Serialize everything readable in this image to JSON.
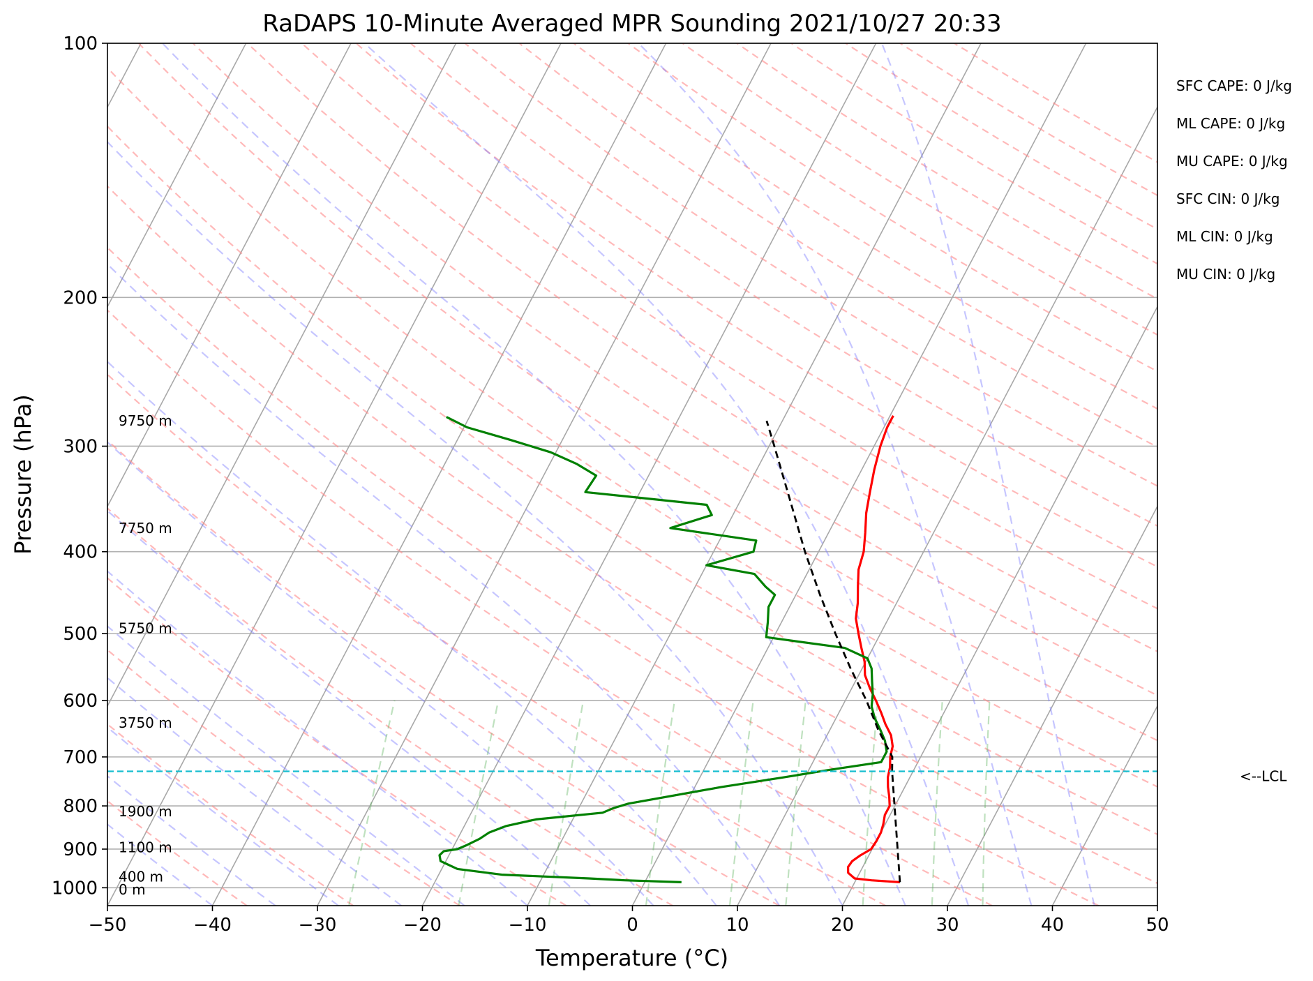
{
  "chart_data": {
    "type": "line",
    "title": "RaDAPS 10-Minute Averaged MPR Sounding 2021/10/27 20:33",
    "xlabel": "Temperature (°C)",
    "ylabel": "Pressure (hPa)",
    "xlim": [
      -50,
      50
    ],
    "ylim": [
      1050,
      100
    ],
    "y_scale": "log",
    "grid": true,
    "x_ticks": [
      "−50",
      "−40",
      "−30",
      "−20",
      "−10",
      "0",
      "10",
      "20",
      "30",
      "40",
      "50"
    ],
    "x_tick_values": [
      -50,
      -40,
      -30,
      -20,
      -10,
      0,
      10,
      20,
      30,
      40,
      50
    ],
    "y_ticks": [
      "100",
      "200",
      "300",
      "400",
      "500",
      "600",
      "700",
      "800",
      "900",
      "1000"
    ],
    "y_tick_values": [
      100,
      200,
      300,
      400,
      500,
      600,
      700,
      800,
      900,
      1000
    ],
    "height_labels": [
      {
        "text": "9750 m",
        "p": 280
      },
      {
        "text": "7750 m",
        "p": 375
      },
      {
        "text": "5750 m",
        "p": 493
      },
      {
        "text": "3750 m",
        "p": 638
      },
      {
        "text": "1900 m",
        "p": 812
      },
      {
        "text": "1100 m",
        "p": 896
      },
      {
        "text": "400 m",
        "p": 970
      },
      {
        "text": "0 m",
        "p": 1005
      }
    ],
    "stats": [
      "SFC CAPE: 0 J/kg",
      "ML CAPE: 0 J/kg",
      "MU CAPE: 0 J/kg",
      "SFC CIN: 0 J/kg",
      "ML CIN: 0 J/kg",
      "MU CIN: 0 J/kg"
    ],
    "lcl": {
      "label": "<--LCL",
      "p": 728,
      "color": "#17becf"
    },
    "series": [
      {
        "color": "#ff0000",
        "points": [
          [
            985,
            24.3
          ],
          [
            980,
            21.5
          ],
          [
            975,
            19.8
          ],
          [
            960,
            18.9
          ],
          [
            945,
            18.6
          ],
          [
            930,
            18.7
          ],
          [
            915,
            19.2
          ],
          [
            900,
            19.9
          ],
          [
            880,
            20.0
          ],
          [
            860,
            20.0
          ],
          [
            840,
            19.8
          ],
          [
            820,
            19.5
          ],
          [
            800,
            19.5
          ],
          [
            780,
            19.0
          ],
          [
            760,
            18.4
          ],
          [
            740,
            17.9
          ],
          [
            720,
            17.6
          ],
          [
            700,
            17.1
          ],
          [
            680,
            16.8
          ],
          [
            660,
            16.1
          ],
          [
            640,
            15.0
          ],
          [
            620,
            14.0
          ],
          [
            600,
            12.9
          ],
          [
            580,
            11.7
          ],
          [
            560,
            10.6
          ],
          [
            540,
            9.9
          ],
          [
            520,
            8.9
          ],
          [
            500,
            7.9
          ],
          [
            480,
            6.9
          ],
          [
            460,
            6.3
          ],
          [
            440,
            5.5
          ],
          [
            420,
            4.7
          ],
          [
            400,
            4.3
          ],
          [
            380,
            3.5
          ],
          [
            360,
            2.6
          ],
          [
            340,
            1.9
          ],
          [
            320,
            1.2
          ],
          [
            300,
            0.6
          ],
          [
            285,
            0.3
          ],
          [
            276,
            0.3
          ]
        ]
      },
      {
        "color": "#008000",
        "points": [
          [
            985,
            3.5
          ],
          [
            980,
            -2.0
          ],
          [
            975,
            -5.5
          ],
          [
            965,
            -14.0
          ],
          [
            950,
            -18.5
          ],
          [
            930,
            -20.5
          ],
          [
            915,
            -20.9
          ],
          [
            905,
            -20.7
          ],
          [
            900,
            -19.5
          ],
          [
            890,
            -18.8
          ],
          [
            875,
            -17.9
          ],
          [
            860,
            -17.3
          ],
          [
            845,
            -16.0
          ],
          [
            830,
            -13.5
          ],
          [
            815,
            -7.5
          ],
          [
            805,
            -6.7
          ],
          [
            795,
            -5.5
          ],
          [
            760,
            2.5
          ],
          [
            740,
            8.0
          ],
          [
            725,
            12.0
          ],
          [
            710,
            16.5
          ],
          [
            690,
            16.5
          ],
          [
            670,
            15.8
          ],
          [
            650,
            14.8
          ],
          [
            630,
            13.7
          ],
          [
            610,
            12.8
          ],
          [
            590,
            12.3
          ],
          [
            570,
            11.6
          ],
          [
            550,
            10.9
          ],
          [
            535,
            10.0
          ],
          [
            520,
            7.3
          ],
          [
            505,
            -0.7
          ],
          [
            485,
            -1.3
          ],
          [
            465,
            -2.0
          ],
          [
            450,
            -2.0
          ],
          [
            440,
            -3.3
          ],
          [
            425,
            -5.0
          ],
          [
            415,
            -10.0
          ],
          [
            400,
            -6.2
          ],
          [
            388,
            -6.5
          ],
          [
            375,
            -15.3
          ],
          [
            362,
            -12.0
          ],
          [
            352,
            -13.0
          ],
          [
            340,
            -25.2
          ],
          [
            325,
            -25.0
          ],
          [
            315,
            -27.4
          ],
          [
            305,
            -30.5
          ],
          [
            295,
            -34.9
          ],
          [
            285,
            -39.7
          ],
          [
            277,
            -42.2
          ]
        ]
      },
      {
        "color": "#000000",
        "dash": true,
        "points": [
          [
            985,
            24.3
          ],
          [
            728,
            18.0
          ],
          [
            700,
            17.3
          ],
          [
            650,
            14.6
          ],
          [
            600,
            12.0
          ],
          [
            550,
            8.9
          ],
          [
            500,
            5.7
          ],
          [
            450,
            2.3
          ],
          [
            400,
            -1.3
          ],
          [
            350,
            -5.1
          ],
          [
            300,
            -9.5
          ],
          [
            280,
            -11.5
          ]
        ]
      }
    ]
  }
}
